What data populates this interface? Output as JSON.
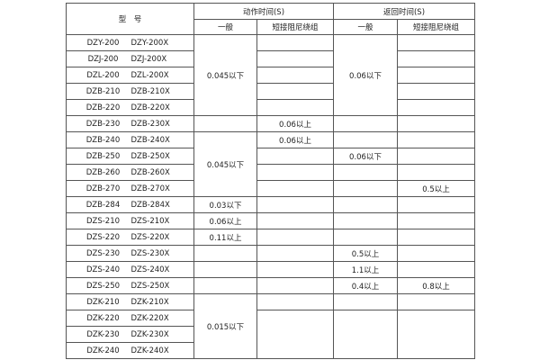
{
  "header": {
    "model": "型　号",
    "action_time": "动作时间(S)",
    "return_time": "返回时间(S)",
    "general": "一般",
    "short_damping": "短接阻尼绕组"
  },
  "models": [
    [
      "DZY-200",
      "DZY-200X"
    ],
    [
      "DZJ-200",
      "DZJ-200X"
    ],
    [
      "DZL-200",
      "DZL-200X"
    ],
    [
      "DZB-210",
      "DZB-210X"
    ],
    [
      "DZB-220",
      "DZB-220X"
    ],
    [
      "DZB-230",
      "DZB-230X"
    ],
    [
      "DZB-240",
      "DZB-240X"
    ],
    [
      "DZB-250",
      "DZB-250X"
    ],
    [
      "DZB-260",
      "DZB-260X"
    ],
    [
      "DZB-270",
      "DZB-270X"
    ],
    [
      "DZB-284",
      "DZB-284X"
    ],
    [
      "DZS-210",
      "DZS-210X"
    ],
    [
      "DZS-220",
      "DZS-220X"
    ],
    [
      "DZS-230",
      "DZS-230X"
    ],
    [
      "DZS-240",
      "DZS-240X"
    ],
    [
      "DZS-250",
      "DZS-250X"
    ],
    [
      "DZK-210",
      "DZK-210X"
    ],
    [
      "DZK-220",
      "DZK-220X"
    ],
    [
      "DZK-230",
      "DZK-230X"
    ],
    [
      "DZK-240",
      "DZK-240X"
    ]
  ],
  "columns": {
    "action_general": [
      {
        "value": "0.045以下",
        "span": 5
      },
      {
        "value": "",
        "span": 1
      },
      {
        "value": "0.045以下",
        "span": 4
      },
      {
        "value": "0.03以下",
        "span": 1
      },
      {
        "value": "0.06以上",
        "span": 1
      },
      {
        "value": "0.11以上",
        "span": 1
      },
      {
        "value": "",
        "span": 1
      },
      {
        "value": "",
        "span": 1
      },
      {
        "value": "",
        "span": 1
      },
      {
        "value": "0.015以下",
        "span": 4
      }
    ],
    "action_short": [
      {
        "value": "",
        "span": 1
      },
      {
        "value": "",
        "span": 1
      },
      {
        "value": "",
        "span": 1
      },
      {
        "value": "",
        "span": 1
      },
      {
        "value": "",
        "span": 1
      },
      {
        "value": "0.06以上",
        "span": 1
      },
      {
        "value": "0.06以上",
        "span": 1
      },
      {
        "value": "",
        "span": 1
      },
      {
        "value": "",
        "span": 1
      },
      {
        "value": "",
        "span": 1
      },
      {
        "value": "",
        "span": 1
      },
      {
        "value": "",
        "span": 1
      },
      {
        "value": "",
        "span": 1
      },
      {
        "value": "",
        "span": 1
      },
      {
        "value": "",
        "span": 1
      },
      {
        "value": "",
        "span": 1
      },
      {
        "value": "",
        "span": 1
      },
      {
        "value": "",
        "span": 3
      }
    ],
    "return_general": [
      {
        "value": "0.06以下",
        "span": 5
      },
      {
        "value": "",
        "span": 1
      },
      {
        "value": "",
        "span": 1
      },
      {
        "value": "0.06以下",
        "span": 1
      },
      {
        "value": "",
        "span": 1
      },
      {
        "value": "",
        "span": 1
      },
      {
        "value": "",
        "span": 1
      },
      {
        "value": "",
        "span": 1
      },
      {
        "value": "",
        "span": 1
      },
      {
        "value": "0.5以上",
        "span": 1
      },
      {
        "value": "1.1以上",
        "span": 1
      },
      {
        "value": "0.4以上",
        "span": 1
      },
      {
        "value": "",
        "span": 1
      },
      {
        "value": "",
        "span": 3
      }
    ],
    "return_short": [
      {
        "value": "",
        "span": 1
      },
      {
        "value": "",
        "span": 1
      },
      {
        "value": "",
        "span": 1
      },
      {
        "value": "",
        "span": 1
      },
      {
        "value": "",
        "span": 1
      },
      {
        "value": "",
        "span": 1
      },
      {
        "value": "",
        "span": 1
      },
      {
        "value": "",
        "span": 1
      },
      {
        "value": "",
        "span": 1
      },
      {
        "value": "0.5以上",
        "span": 1
      },
      {
        "value": "",
        "span": 1
      },
      {
        "value": "",
        "span": 1
      },
      {
        "value": "",
        "span": 1
      },
      {
        "value": "",
        "span": 1
      },
      {
        "value": "",
        "span": 1
      },
      {
        "value": "0.8以上",
        "span": 1
      },
      {
        "value": "",
        "span": 1
      },
      {
        "value": "",
        "span": 3
      }
    ]
  }
}
